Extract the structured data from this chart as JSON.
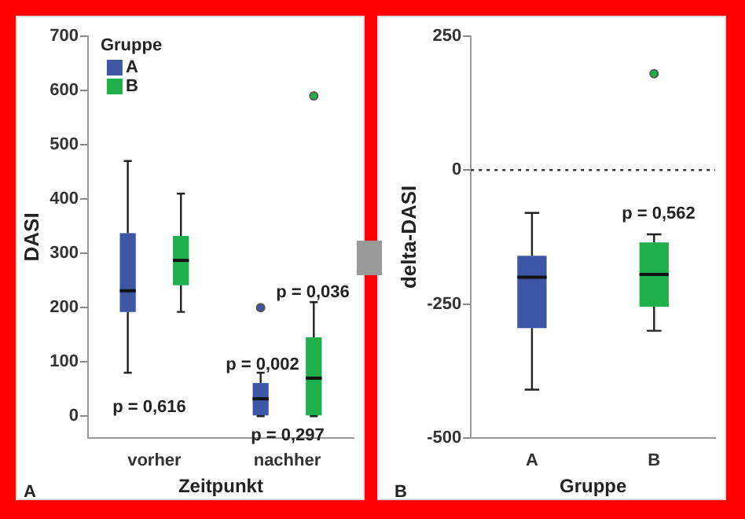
{
  "chart_data": [
    {
      "type": "box",
      "categories": [
        "vorher",
        "nachher"
      ],
      "xlabel": "Zeitpunkt",
      "ylabel": "DASI",
      "legend_title": "Gruppe",
      "legend": "top left",
      "ylim": [
        -40,
        700
      ],
      "yticks": [
        0,
        100,
        200,
        300,
        400,
        500,
        600,
        700
      ],
      "series": [
        {
          "name": "A",
          "color": "#3e56a6",
          "boxes": [
            {
              "low": 80,
              "q1": 192,
              "median": 231,
              "q3": 337,
              "high": 470
            },
            {
              "low": 0,
              "q1": 0,
              "median": 32,
              "q3": 61,
              "high": 80,
              "outliers": [
                200
              ]
            }
          ]
        },
        {
          "name": "B",
          "color": "#1fb04b",
          "boxes": [
            {
              "low": 192,
              "q1": 241,
              "median": 287,
              "q3": 332,
              "high": 410
            },
            {
              "low": 0,
              "q1": 0,
              "median": 70,
              "q3": 145,
              "high": 210,
              "outliers": [
                590
              ]
            }
          ]
        }
      ],
      "annotations": [
        "p = 0,616",
        "p = 0,002",
        "p = 0,036",
        "p = 0,297",
        "A"
      ]
    },
    {
      "type": "box",
      "categories": [
        "A",
        "B"
      ],
      "xlabel": "Gruppe",
      "ylabel": "delta-DASI",
      "ylim": [
        -500,
        250
      ],
      "yticks": [
        -500,
        -250,
        0,
        250
      ],
      "boxes": [
        {
          "low": -410,
          "q1": -295,
          "median": -200,
          "q3": -160,
          "high": -80
        },
        {
          "low": -300,
          "q1": -255,
          "median": -195,
          "q3": -135,
          "high": -120,
          "outliers": [
            180
          ]
        }
      ],
      "colors": [
        "#3e56a6",
        "#1fb04b"
      ],
      "ref_lines": [
        {
          "axis": "y",
          "value": 0,
          "line_style": "dotted"
        }
      ],
      "annotations": [
        "p = 0,562",
        "B"
      ]
    }
  ]
}
